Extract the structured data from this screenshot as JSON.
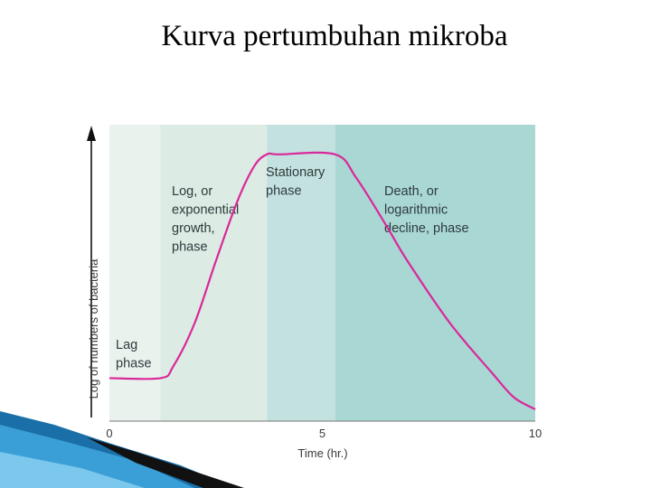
{
  "slide": {
    "title": "Kurva pertumbuhan mikroba"
  },
  "chart_data": {
    "type": "line",
    "title": "",
    "xlabel": "Time (hr.)",
    "ylabel": "Log of numbers of bacteria",
    "xlim": [
      0,
      10
    ],
    "ylim": [
      0,
      1
    ],
    "xticks": [
      "0",
      "5",
      "10"
    ],
    "phases": [
      {
        "label": [
          "Lag",
          "phase"
        ],
        "x0": 0,
        "x1": 1.2,
        "color": "#eaf2ee"
      },
      {
        "label": [
          "Log, or",
          "exponential",
          "growth,",
          "phase"
        ],
        "x0": 1.2,
        "x1": 3.7,
        "color": "#dcebe3"
      },
      {
        "label": [
          "Stationary",
          "phase"
        ],
        "x0": 3.7,
        "x1": 5.3,
        "color": "#c3e1df"
      },
      {
        "label": [
          "Death, or",
          "logarithmic",
          "decline, phase"
        ],
        "x0": 5.3,
        "x1": 10,
        "color": "#a9d7d4"
      }
    ],
    "series": [
      {
        "color": "#d9289a",
        "x": [
          0,
          1.2,
          1.5,
          2.0,
          2.5,
          3.0,
          3.4,
          3.7,
          4.0,
          5.3,
          5.8,
          6.5,
          7.0,
          8.0,
          9.0,
          9.5,
          10
        ],
        "y": [
          0.145,
          0.145,
          0.185,
          0.33,
          0.54,
          0.74,
          0.86,
          0.9,
          0.9,
          0.9,
          0.82,
          0.66,
          0.54,
          0.33,
          0.16,
          0.08,
          0.04
        ]
      }
    ]
  }
}
